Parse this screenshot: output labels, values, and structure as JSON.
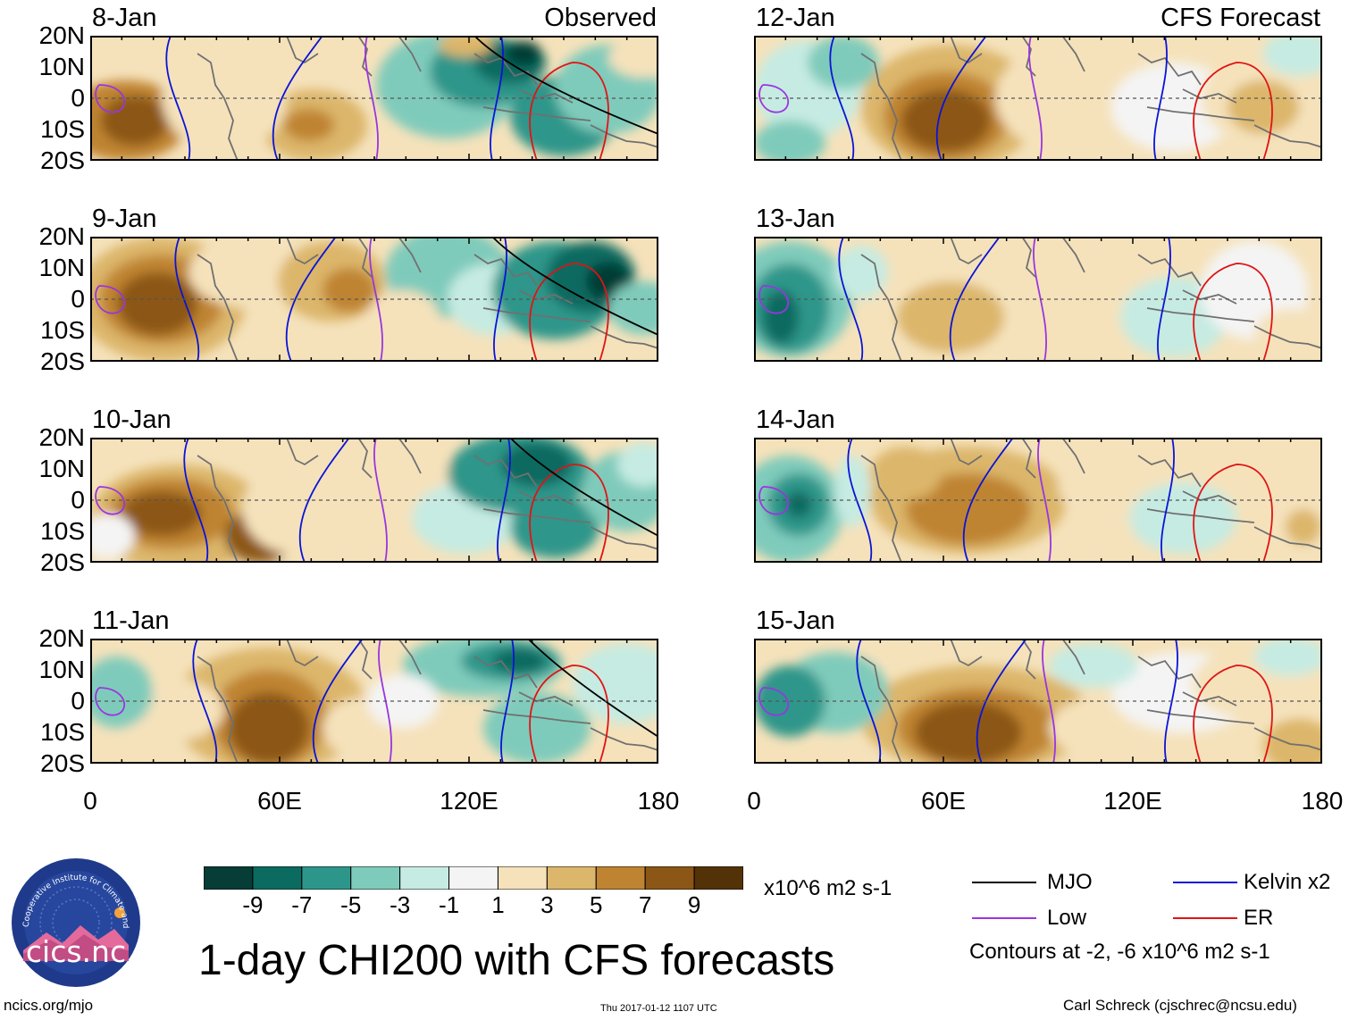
{
  "chart_data": {
    "type": "heatmap",
    "title": "1-day CHI200 with CFS forecasts",
    "variable": "CHI200 anomaly",
    "units": "x10^6 m2 s-1",
    "y_tick_labels": [
      "20N",
      "10N",
      "0",
      "10S",
      "20S"
    ],
    "y_range_deg": [
      -20,
      20
    ],
    "x_tick_labels": [
      "0",
      "60E",
      "120E",
      "180"
    ],
    "x_range_deg": [
      0,
      180
    ],
    "column_headers": {
      "left": "Observed",
      "right": "CFS Forecast"
    },
    "panels_left": [
      "8-Jan",
      "9-Jan",
      "10-Jan",
      "11-Jan"
    ],
    "panels_right": [
      "12-Jan",
      "13-Jan",
      "14-Jan",
      "15-Jan"
    ],
    "colorbar": {
      "labels": [
        "-9",
        "-7",
        "-5",
        "-3",
        "-1",
        "1",
        "3",
        "5",
        "7",
        "9"
      ],
      "colors": [
        "#063d36",
        "#0b6b60",
        "#2d968a",
        "#7fcbbb",
        "#c6ebe2",
        "#f4f4f4",
        "#f5e2bb",
        "#dcb66a",
        "#bf8431",
        "#8c5617",
        "#543208"
      ],
      "units_label": "x10^6 m2 s-1"
    },
    "contour_legend": [
      {
        "name": "MJO",
        "color": "#000000"
      },
      {
        "name": "Kelvin x2",
        "color": "#0a14d8"
      },
      {
        "name": "Low",
        "color": "#9a35e0"
      },
      {
        "name": "ER",
        "color": "#e01414"
      }
    ],
    "contour_note": "Contours at -2, -6 x10^6 m2 s-1"
  },
  "footer": {
    "logo_text": "cics.nc",
    "logo_ring_text": "Cooperative Institute for Climate and Satellites",
    "left": "ncics.org/mjo",
    "center": "Thu 2017-01-12 1107 UTC",
    "right": "Carl Schreck (cjschrec@ncsu.edu)"
  }
}
